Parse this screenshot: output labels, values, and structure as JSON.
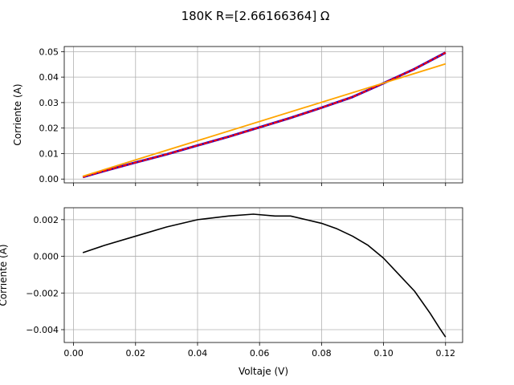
{
  "figure": {
    "title": "180K R=[2.66166364] Ω"
  },
  "colors": {
    "measured": "#1f00c8",
    "measured_overlay": "#ff0000",
    "fit": "#ffa500",
    "residual": "#000000",
    "grid": "#b0b0b0"
  },
  "chart_data": [
    {
      "type": "line",
      "xlabel": "",
      "ylabel": "Corriente (A)",
      "xlim": [
        -0.003,
        0.1255
      ],
      "ylim": [
        -0.0015,
        0.052
      ],
      "x_ticks": [
        0.0,
        0.02,
        0.04,
        0.06,
        0.08,
        0.1,
        0.12
      ],
      "x_tick_labels_visible": false,
      "y_ticks": [
        0.0,
        0.01,
        0.02,
        0.03,
        0.04,
        0.05
      ],
      "y_tick_labels": [
        "0.00",
        "0.01",
        "0.02",
        "0.03",
        "0.04",
        "0.05"
      ],
      "grid": true,
      "series": [
        {
          "role": "measured",
          "x": [
            0.003,
            0.01,
            0.02,
            0.03,
            0.04,
            0.05,
            0.06,
            0.07,
            0.08,
            0.09,
            0.1,
            0.11,
            0.12
          ],
          "y": [
            0.0008,
            0.0032,
            0.0065,
            0.0097,
            0.0132,
            0.0166,
            0.0203,
            0.024,
            0.028,
            0.0322,
            0.0376,
            0.0432,
            0.0496
          ]
        },
        {
          "role": "fit",
          "x": [
            0.003,
            0.12
          ],
          "y": [
            0.0011,
            0.0452
          ]
        }
      ]
    },
    {
      "type": "line",
      "xlabel": "Voltaje (V)",
      "ylabel": "Corriente (A)",
      "xlim": [
        -0.003,
        0.1255
      ],
      "ylim": [
        -0.0047,
        0.00265
      ],
      "x_ticks": [
        0.0,
        0.02,
        0.04,
        0.06,
        0.08,
        0.1,
        0.12
      ],
      "x_tick_labels": [
        "0.00",
        "0.02",
        "0.04",
        "0.06",
        "0.08",
        "0.10",
        "0.12"
      ],
      "y_ticks": [
        -0.004,
        -0.002,
        0.0,
        0.002
      ],
      "y_tick_labels": [
        "−0.004",
        "−0.002",
        "0.000",
        "0.002"
      ],
      "grid": true,
      "series": [
        {
          "role": "residual",
          "x": [
            0.003,
            0.01,
            0.02,
            0.03,
            0.04,
            0.05,
            0.058,
            0.065,
            0.07,
            0.08,
            0.085,
            0.09,
            0.095,
            0.1,
            0.105,
            0.11,
            0.115,
            0.118,
            0.12
          ],
          "y": [
            0.0002,
            0.0006,
            0.0011,
            0.0016,
            0.002,
            0.0022,
            0.0023,
            0.0022,
            0.0022,
            0.0018,
            0.0015,
            0.0011,
            0.0006,
            -0.0001,
            -0.001,
            -0.0019,
            -0.0031,
            -0.0039,
            -0.0044
          ]
        }
      ]
    }
  ]
}
